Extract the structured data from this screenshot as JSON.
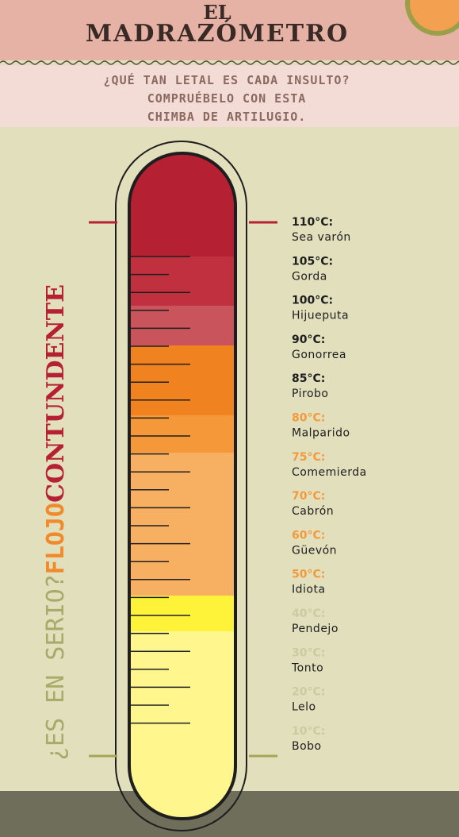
{
  "header": {
    "kicker": "EL",
    "title": "MADRAZÓMETRO"
  },
  "subtitle": [
    "¿QUÉ TAN LETAL ES CADA INSULTO?",
    "COMPRUÉBELO CON ESTA",
    "CHIMBA DE ARTILUGIO."
  ],
  "side_label": [
    "¿ES EN SERIO?",
    "FLOJO",
    "CONTUNDENTE"
  ],
  "scale": [
    {
      "temp": "110°C:",
      "name": "Sea varón"
    },
    {
      "temp": "105°C:",
      "name": "Gorda"
    },
    {
      "temp": "100°C:",
      "name": "Hijueputa"
    },
    {
      "temp": "90°C:",
      "name": "Gonorrea"
    },
    {
      "temp": "85°C:",
      "name": "Pirobo"
    },
    {
      "temp": "80°C:",
      "name": "Malparido"
    },
    {
      "temp": "75°C:",
      "name": "Comemierda"
    },
    {
      "temp": "70°C:",
      "name": "Cabrón"
    },
    {
      "temp": "60°C:",
      "name": "Güevón"
    },
    {
      "temp": "50°C:",
      "name": "Idiota"
    },
    {
      "temp": "40°C:",
      "name": "Pendejo"
    },
    {
      "temp": "30°C:",
      "name": "Tonto"
    },
    {
      "temp": "20°C:",
      "name": "Lelo"
    },
    {
      "temp": "10°C:",
      "name": "Bobo"
    }
  ]
}
